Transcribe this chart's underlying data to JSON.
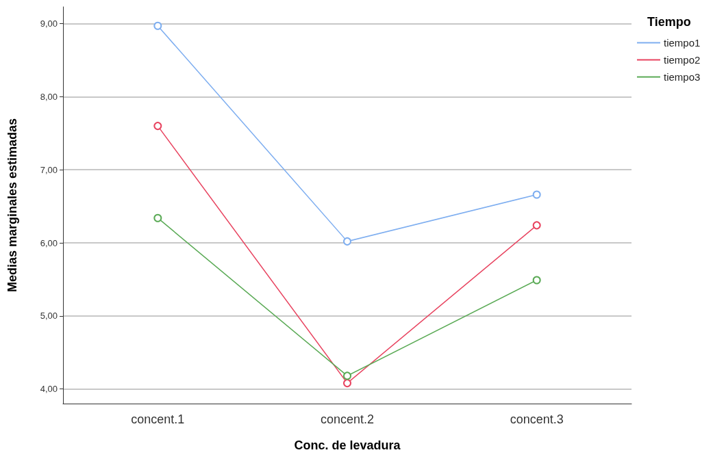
{
  "chart_data": {
    "type": "line",
    "xlabel": "Conc. de levadura",
    "ylabel": "Medias marginales estimadas",
    "legend_title": "Tiempo",
    "categories": [
      "concent.1",
      "concent.2",
      "concent.3"
    ],
    "series": [
      {
        "name": "tiempo1",
        "color": "#7eaef0",
        "values": [
          8.97,
          6.02,
          6.66
        ]
      },
      {
        "name": "tiempo2",
        "color": "#e8435f",
        "values": [
          7.6,
          4.08,
          6.24
        ]
      },
      {
        "name": "tiempo3",
        "color": "#5aaa55",
        "values": [
          6.34,
          4.18,
          5.49
        ]
      }
    ],
    "ylim": [
      3.8,
      9.23
    ],
    "yticks": [
      {
        "value": 4,
        "label": "4,00"
      },
      {
        "value": 5,
        "label": "5,00"
      },
      {
        "value": 6,
        "label": "6,00"
      },
      {
        "value": 7,
        "label": "7,00"
      },
      {
        "value": 8,
        "label": "8,00"
      },
      {
        "value": 9,
        "label": "9,00"
      }
    ],
    "grid": "y",
    "legend": "top right",
    "marker": "circle",
    "line_style": "solid"
  }
}
